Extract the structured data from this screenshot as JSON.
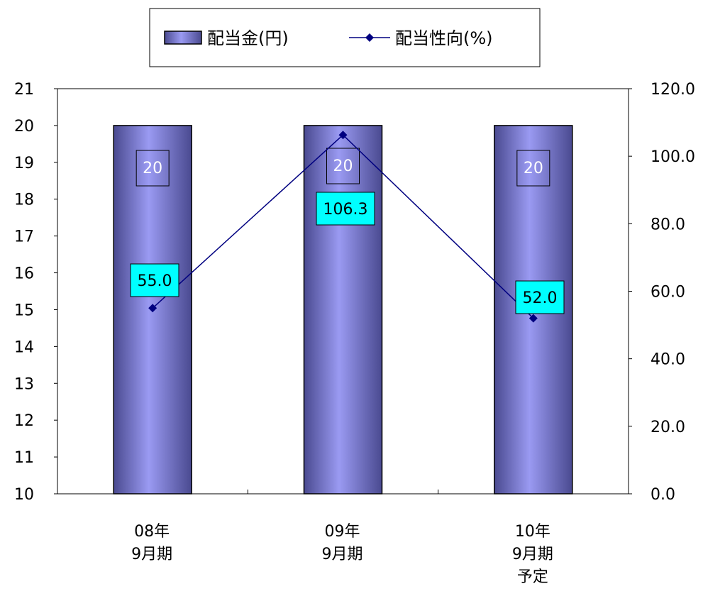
{
  "chart_data": {
    "type": "bar",
    "categories": [
      [
        "08年",
        "9月期"
      ],
      [
        "09年",
        "9月期"
      ],
      [
        "10年",
        "9月期",
        "予定"
      ]
    ],
    "series": [
      {
        "name": "配当金(円)",
        "kind": "bar",
        "axis": "left",
        "values": [
          20,
          20,
          20
        ],
        "data_labels": [
          "20",
          "20",
          "20"
        ]
      },
      {
        "name": "配当性向(%)",
        "kind": "line",
        "axis": "right",
        "values": [
          55.0,
          106.3,
          52.0
        ],
        "data_labels": [
          "55.0",
          "106.3",
          "52.0"
        ]
      }
    ],
    "y_left": {
      "lim": [
        10,
        21
      ],
      "ticks": [
        "10",
        "11",
        "12",
        "13",
        "14",
        "15",
        "16",
        "17",
        "18",
        "19",
        "20",
        "21"
      ]
    },
    "y_right": {
      "lim": [
        0,
        120
      ],
      "ticks": [
        "0.0",
        "20.0",
        "40.0",
        "60.0",
        "80.0",
        "100.0",
        "120.0"
      ]
    },
    "legend": {
      "position": "top",
      "items": [
        "配当金(円)",
        "配当性向(%)"
      ]
    },
    "grid": false,
    "colors": {
      "bar_dark": "#4a4a90",
      "bar_light": "#9a9af2",
      "line": "#000080",
      "line_label_bg": "#00ffff",
      "axis": "#000000"
    }
  }
}
